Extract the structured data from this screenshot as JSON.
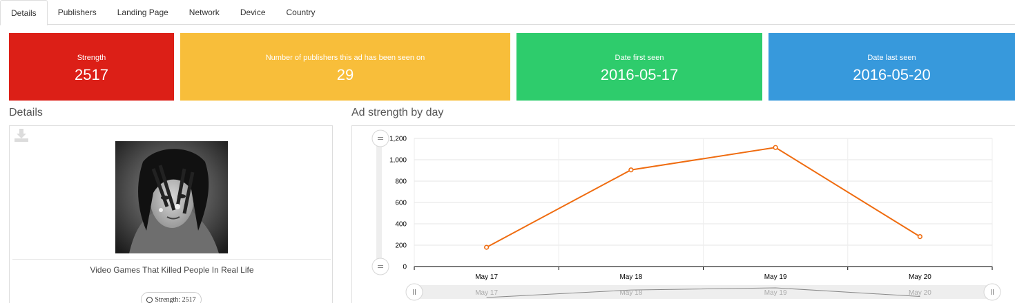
{
  "tabs": [
    "Details",
    "Publishers",
    "Landing Page",
    "Network",
    "Device",
    "Country"
  ],
  "cards": {
    "strength": {
      "label": "Strength",
      "value": "2517",
      "color": "#dc1f17"
    },
    "publishers": {
      "label": "Number of publishers this ad has been seen on",
      "value": "29",
      "color": "#f8be3a"
    },
    "first_seen": {
      "label": "Date first seen",
      "value": "2016-05-17",
      "color": "#2ecc6c"
    },
    "last_seen": {
      "label": "Date last seen",
      "value": "2016-05-20",
      "color": "#3799dc"
    }
  },
  "details": {
    "heading": "Details",
    "ad_title": "Video Games That Killed People In Real Life",
    "strength_badge": "Strength: 2517",
    "download_icon": "download-icon"
  },
  "chart_heading": "Ad strength by day",
  "chart_data": {
    "type": "line",
    "title": "",
    "xlabel": "",
    "ylabel": "",
    "categories": [
      "May 17",
      "May 18",
      "May 19",
      "May 20"
    ],
    "series": [
      {
        "values": [
          180,
          905,
          1115,
          280
        ],
        "color": "#ef6c10"
      }
    ],
    "ylim": [
      0,
      1200
    ],
    "yticks": [
      0,
      200,
      400,
      600,
      800,
      "1,000",
      "1,200"
    ],
    "grid": true,
    "navigator_labels": [
      "May 17",
      "May 18",
      "May 19",
      "May 20"
    ]
  }
}
